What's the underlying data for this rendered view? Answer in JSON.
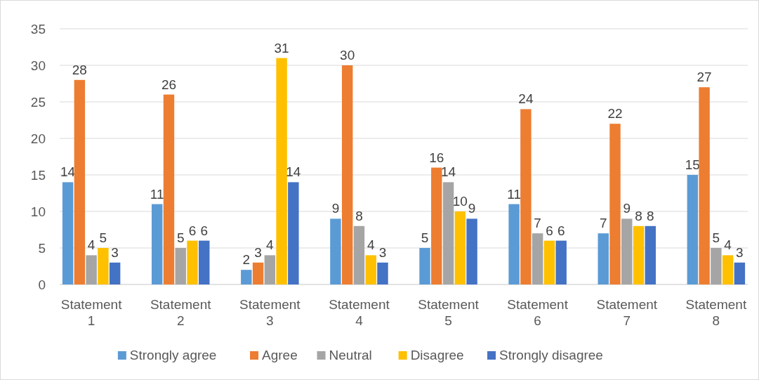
{
  "chart_data": {
    "type": "bar",
    "categories": [
      "Statement 1",
      "Statement 2",
      "Statement 3",
      "Statement 4",
      "Statement 5",
      "Statement 6",
      "Statement 7",
      "Statement 8"
    ],
    "series": [
      {
        "name": "Strongly agree",
        "color": "#5b9bd5",
        "values": [
          14,
          11,
          2,
          9,
          5,
          11,
          7,
          15
        ]
      },
      {
        "name": "Agree",
        "color": "#ed7d31",
        "values": [
          28,
          26,
          3,
          30,
          16,
          24,
          22,
          27
        ]
      },
      {
        "name": "Neutral",
        "color": "#a5a5a5",
        "values": [
          4,
          5,
          4,
          8,
          14,
          7,
          9,
          5
        ]
      },
      {
        "name": "Disagree",
        "color": "#ffc000",
        "values": [
          5,
          6,
          31,
          4,
          10,
          6,
          8,
          4
        ]
      },
      {
        "name": "Strongly disagree",
        "color": "#4472c4",
        "values": [
          3,
          6,
          14,
          3,
          9,
          6,
          8,
          3
        ]
      }
    ],
    "ylim": [
      0,
      35
    ],
    "yticks": [
      0,
      5,
      10,
      15,
      20,
      25,
      30,
      35
    ],
    "grid": "y",
    "legend": "bottom",
    "data_labels": true
  }
}
